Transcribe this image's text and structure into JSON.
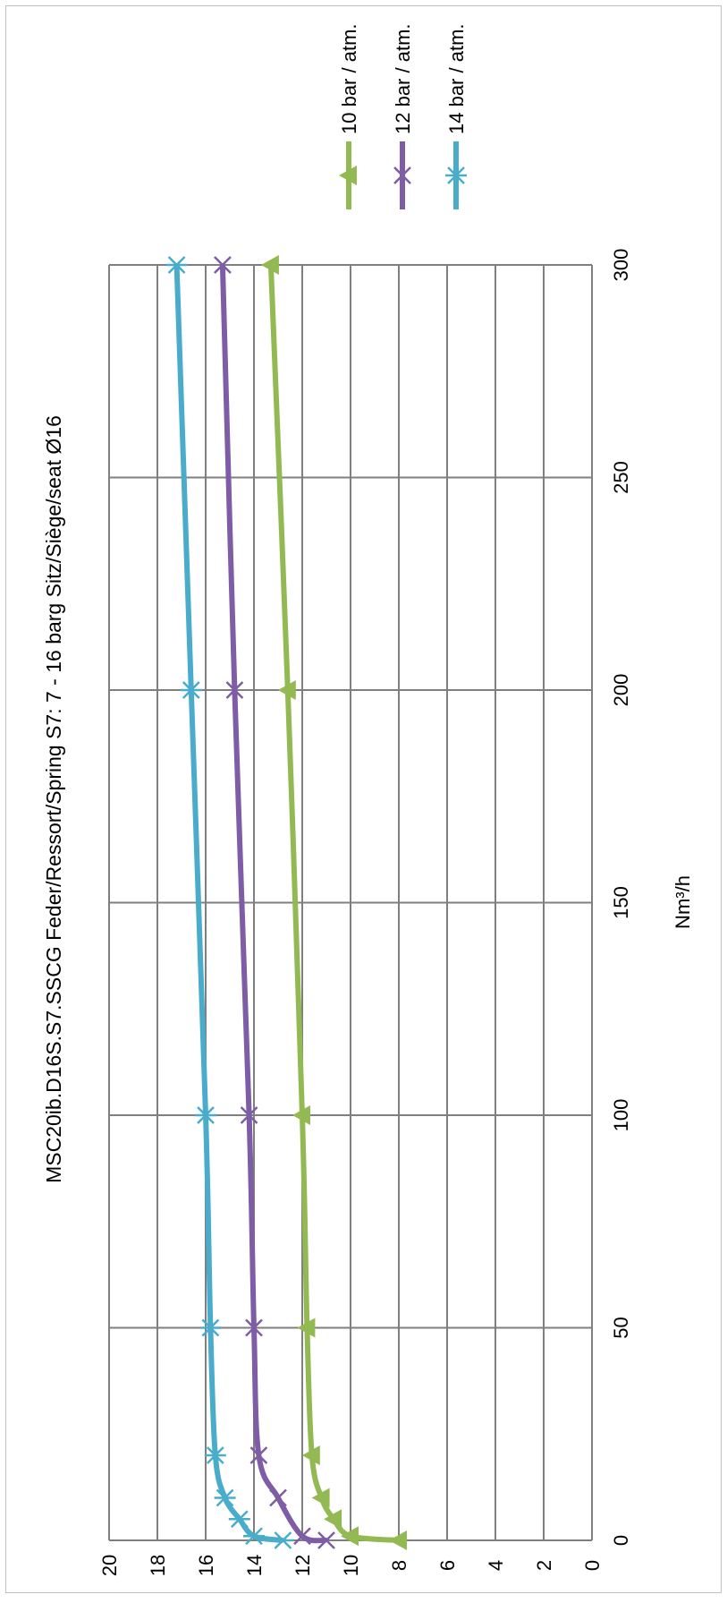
{
  "chart_data": {
    "type": "line",
    "title": "MSC20ib.D16S.S7.SSCG     Feder/Ressort/Spring S7: 7 - 16 barg     Sitz/Siège/seat Ø16",
    "xlabel": "Nm³/h",
    "ylabel": "",
    "xlim": [
      0,
      300
    ],
    "ylim": [
      0,
      20
    ],
    "x_ticks": [
      "0",
      "50",
      "100",
      "150",
      "200",
      "250",
      "300"
    ],
    "y_ticks": [
      "0",
      "2",
      "4",
      "6",
      "8",
      "10",
      "12",
      "14",
      "16",
      "18",
      "20"
    ],
    "grid": true,
    "legend_position": "right",
    "orientation": "rotated 90° clockwise",
    "series": [
      {
        "name": "10 bar / atm.",
        "color": "#93b952",
        "marker": "triangle",
        "points": [
          [
            0,
            8.0
          ],
          [
            1,
            10.0
          ],
          [
            5,
            10.7
          ],
          [
            10,
            11.2
          ],
          [
            20,
            11.6
          ],
          [
            50,
            11.8
          ],
          [
            100,
            12.0
          ],
          [
            200,
            12.6
          ],
          [
            300,
            13.3
          ]
        ]
      },
      {
        "name": "12 bar / atm.",
        "color": "#7e5ca6",
        "marker": "x",
        "points": [
          [
            0,
            11.0
          ],
          [
            1,
            12.0
          ],
          [
            10,
            13.0
          ],
          [
            20,
            13.8
          ],
          [
            50,
            14.0
          ],
          [
            100,
            14.2
          ],
          [
            200,
            14.8
          ],
          [
            300,
            15.3
          ]
        ]
      },
      {
        "name": "14 bar / atm.",
        "color": "#4aaccb",
        "marker": "asterisk",
        "points": [
          [
            0,
            12.8
          ],
          [
            1,
            14.0
          ],
          [
            5,
            14.6
          ],
          [
            10,
            15.2
          ],
          [
            20,
            15.6
          ],
          [
            50,
            15.8
          ],
          [
            100,
            16.0
          ],
          [
            200,
            16.6
          ],
          [
            300,
            17.2
          ]
        ]
      }
    ]
  }
}
